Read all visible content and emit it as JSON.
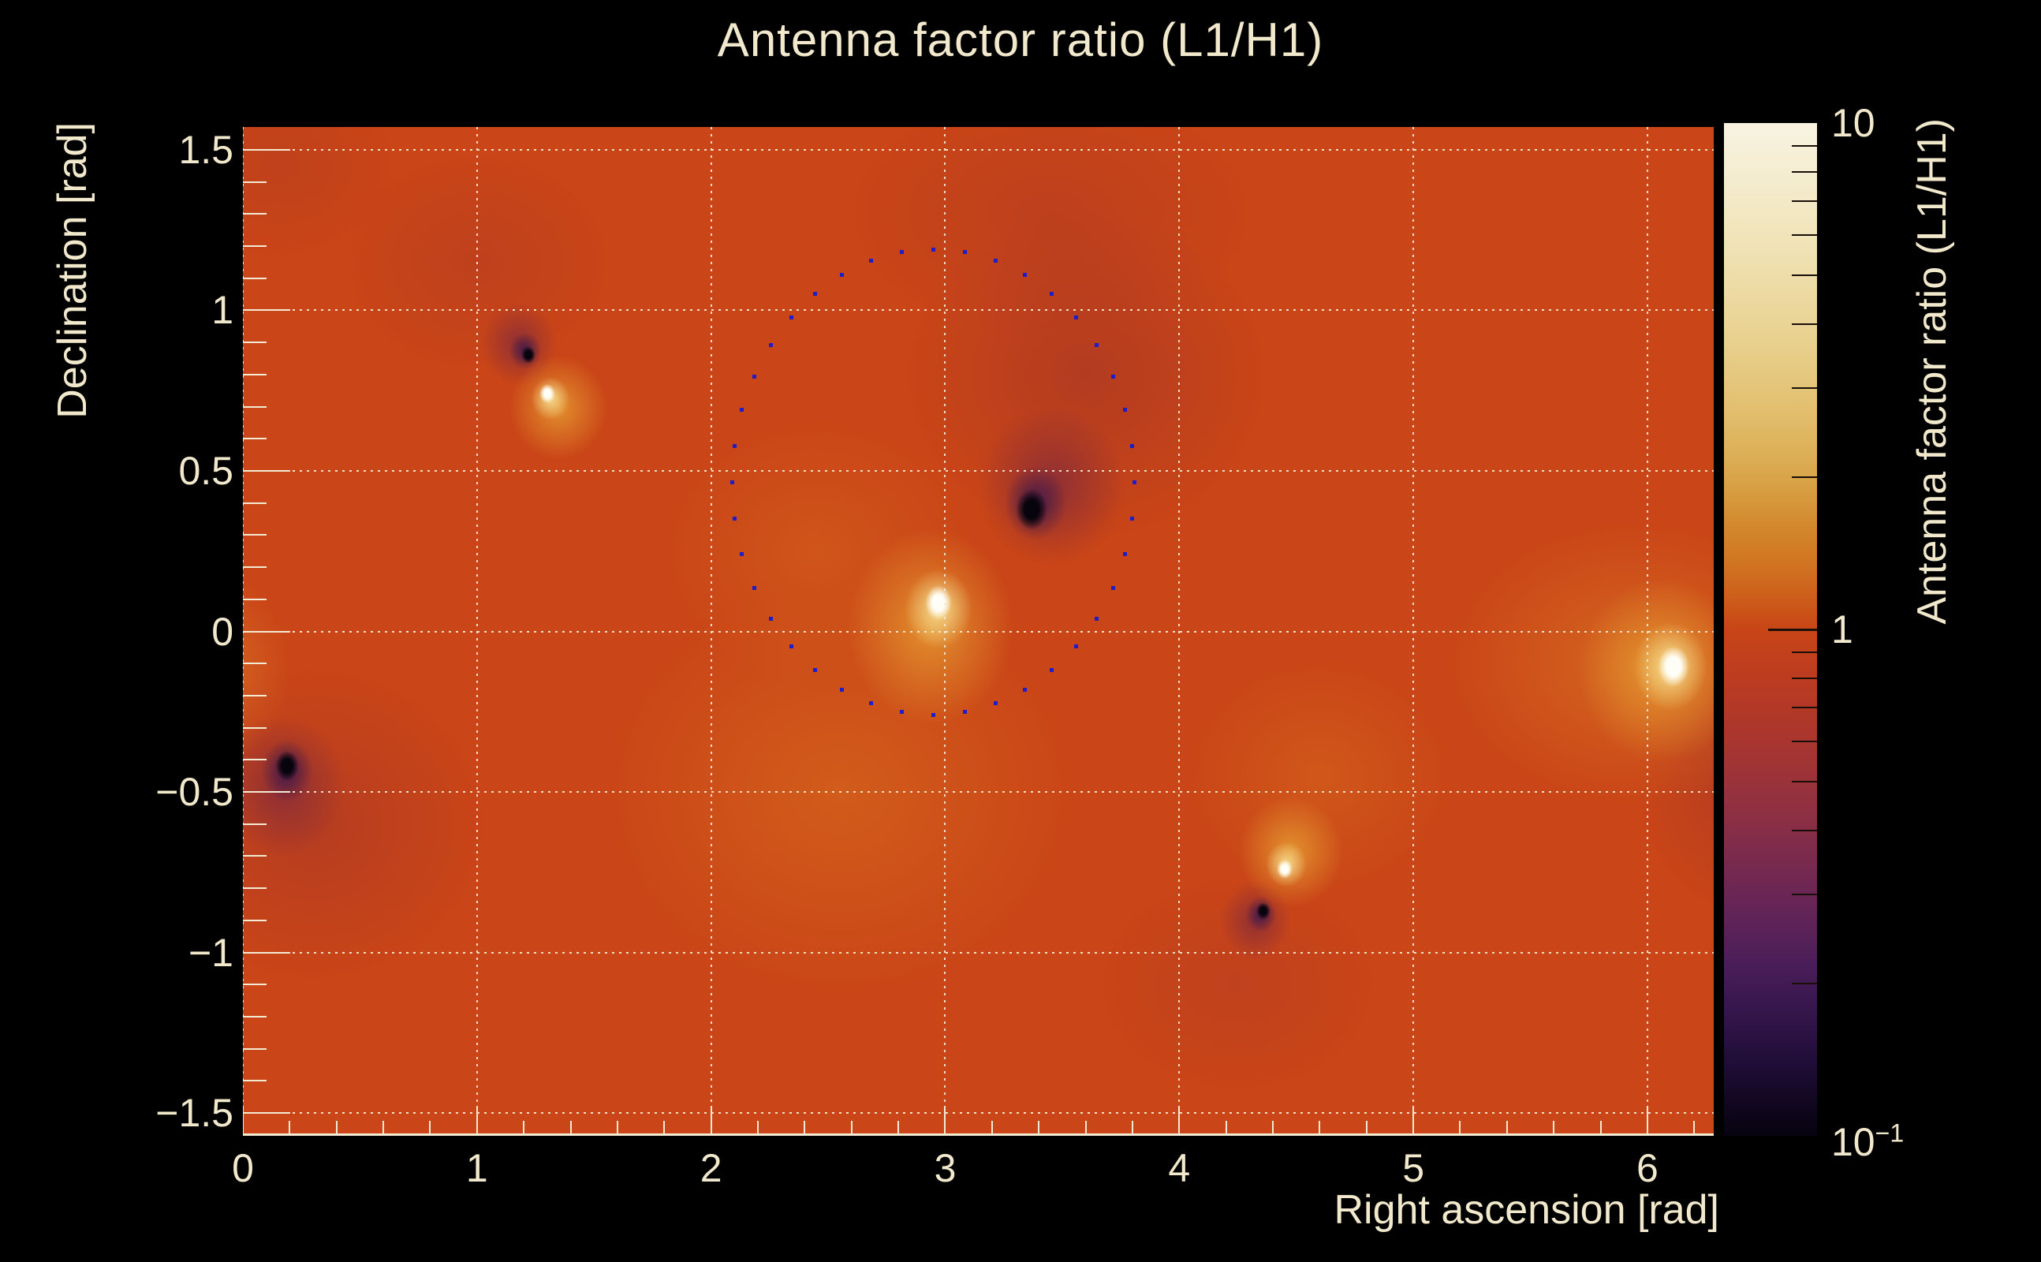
{
  "page": {
    "title": "Antenna factor ratio (L1/H1)",
    "background": "#000000",
    "text_color": "#F2E9CD"
  },
  "chart_data": {
    "type": "heatmap",
    "title": "Antenna factor ratio (L1/H1)",
    "xlabel": "Right ascension [rad]",
    "ylabel": "Declination [rad]",
    "zlabel": "Antenna factor ratio (L1/H1)",
    "xlim": [
      0,
      6.2832
    ],
    "ylim": [
      -1.5708,
      1.5708
    ],
    "zlim": [
      0.1,
      10
    ],
    "zscale": "log",
    "grid": true,
    "background_level": 1.0,
    "base_color": "#CA4517",
    "gridline_color": "#F3EBD6",
    "tick_color": "#F2EAD2",
    "x_ticks": {
      "major": [
        0,
        1,
        2,
        3,
        4,
        5,
        6
      ],
      "labels": [
        "0",
        "1",
        "2",
        "3",
        "4",
        "5",
        "6"
      ],
      "minor_step": 0.2,
      "minor_max": 6.2
    },
    "y_ticks": {
      "major": [
        -1.5,
        -1,
        -0.5,
        0,
        0.5,
        1,
        1.5
      ],
      "labels": [
        "−1.5",
        "−1",
        "−0.5",
        "0",
        "0.5",
        "1",
        "1.5"
      ],
      "minor_step": 0.1
    },
    "z_ticks": {
      "major": [
        1
      ],
      "minor": [
        9,
        8,
        7,
        6,
        5,
        4,
        3,
        2,
        0.9,
        0.8,
        0.7,
        0.6,
        0.5,
        0.4,
        0.3,
        0.2
      ],
      "labels": [
        {
          "t": "10",
          "e": "",
          "v": 10
        },
        {
          "t": "1",
          "e": "",
          "v": 1
        },
        {
          "t": "10",
          "e": "−1",
          "v": 0.1
        }
      ]
    },
    "palette_top_to_bottom": [
      [
        "#F8F3E1",
        0
      ],
      [
        "#F5EDD1",
        5
      ],
      [
        "#F2E6BE",
        10
      ],
      [
        "#EDDCA6",
        16
      ],
      [
        "#E8CF8C",
        22
      ],
      [
        "#E2C070",
        28
      ],
      [
        "#DCAE55",
        33
      ],
      [
        "#D69A3C",
        37
      ],
      [
        "#D3872C",
        40
      ],
      [
        "#D17722",
        43
      ],
      [
        "#CE641C",
        46
      ],
      [
        "#CB5519",
        48
      ],
      [
        "#C84517",
        50
      ],
      [
        "#BE3D1F",
        54
      ],
      [
        "#B23827",
        58
      ],
      [
        "#A23434",
        63
      ],
      [
        "#8F3042",
        68
      ],
      [
        "#782A4E",
        73
      ],
      [
        "#622457",
        78
      ],
      [
        "#4B1E59",
        83
      ],
      [
        "#38174E",
        87
      ],
      [
        "#271040",
        91
      ],
      [
        "#170A2B",
        95
      ],
      [
        "#0D0519",
        98
      ],
      [
        "#070310",
        100
      ]
    ],
    "features": [
      {
        "name": "bright-max-central",
        "kind": "bright",
        "ra": 2.97,
        "dec": 0.09,
        "peak": 10,
        "core": [
          17,
          22
        ],
        "mid": [
          60,
          70,
          0,
          8
        ],
        "outer": [
          135,
          160,
          -10,
          30
        ]
      },
      {
        "name": "dark-min-central",
        "kind": "dark",
        "ra": 3.37,
        "dec": 0.38,
        "peak": 0.1,
        "core": [
          20,
          26
        ],
        "mid": [
          55,
          65,
          5,
          -8
        ],
        "outer": [
          120,
          130,
          25,
          -30
        ]
      },
      {
        "name": "bright-small-upper-left",
        "kind": "bright",
        "ra": 1.3,
        "dec": 0.74,
        "peak": 10,
        "core": [
          10,
          12
        ],
        "mid": [
          34,
          38,
          4,
          6
        ],
        "outer": [
          80,
          85,
          14,
          18
        ]
      },
      {
        "name": "dark-small-upper-left",
        "kind": "dark",
        "ra": 1.22,
        "dec": 0.86,
        "peak": 0.1,
        "core": [
          9,
          11
        ],
        "mid": [
          28,
          32,
          -4,
          -5
        ],
        "outer": [
          62,
          68,
          -12,
          -14
        ]
      },
      {
        "name": "dark-left-edge",
        "kind": "dark",
        "ra": 0.19,
        "dec": -0.42,
        "peak": 0.1,
        "core": [
          15,
          19
        ],
        "mid": [
          45,
          55,
          0,
          6
        ],
        "outer": [
          100,
          115,
          -5,
          25
        ]
      },
      {
        "name": "bright-small-lower-right",
        "kind": "bright",
        "ra": 4.45,
        "dec": -0.74,
        "peak": 10,
        "core": [
          10,
          12
        ],
        "mid": [
          36,
          40,
          2,
          -6
        ],
        "outer": [
          85,
          90,
          8,
          -22
        ]
      },
      {
        "name": "dark-small-lower-right",
        "kind": "dark",
        "ra": 4.36,
        "dec": -0.87,
        "peak": 0.1,
        "core": [
          9,
          11
        ],
        "mid": [
          27,
          31,
          -3,
          4
        ],
        "outer": [
          58,
          64,
          -10,
          12
        ]
      },
      {
        "name": "bright-right-edge",
        "kind": "bright",
        "ra": 6.11,
        "dec": -0.11,
        "peak": 10,
        "core": [
          20,
          26
        ],
        "mid": [
          65,
          78,
          -4,
          0
        ],
        "outer": [
          135,
          150,
          -15,
          5
        ]
      }
    ],
    "washes": [
      {
        "ra": 2.55,
        "dec": -0.5,
        "rx": 300,
        "ry": 260,
        "rgb": "222,130,34",
        "alpha": 0.38
      },
      {
        "ra": 2.45,
        "dec": 0.25,
        "rx": 200,
        "ry": 170,
        "rgb": "220,122,32",
        "alpha": 0.3
      },
      {
        "ra": 3.6,
        "dec": 0.8,
        "rx": 230,
        "ry": 210,
        "rgb": "150,48,44",
        "alpha": 0.45
      },
      {
        "ra": 3.45,
        "dec": 1.3,
        "rx": 260,
        "ry": 160,
        "rgb": "165,54,40",
        "alpha": 0.35
      },
      {
        "ra": 0.3,
        "dec": -0.6,
        "rx": 220,
        "ry": 200,
        "rgb": "150,48,48",
        "alpha": 0.4
      },
      {
        "ra": 1.0,
        "dec": 1.15,
        "rx": 170,
        "ry": 140,
        "rgb": "168,56,40",
        "alpha": 0.35
      },
      {
        "ra": 4.25,
        "dec": -1.1,
        "rx": 180,
        "ry": 140,
        "rgb": "168,56,44",
        "alpha": 0.3
      },
      {
        "ra": 4.6,
        "dec": -0.45,
        "rx": 170,
        "ry": 150,
        "rgb": "222,130,34",
        "alpha": 0.3
      },
      {
        "ra": 5.95,
        "dec": -0.1,
        "rx": 240,
        "ry": 180,
        "rgb": "226,150,45",
        "alpha": 0.4
      },
      {
        "ra": -0.17,
        "dec": -0.12,
        "rx": 110,
        "ry": 130,
        "rgb": "228,155,52",
        "alpha": 0.45
      },
      {
        "ra": 6.45,
        "dec": -0.45,
        "rx": 150,
        "ry": 180,
        "rgb": "140,44,52",
        "alpha": 0.4
      },
      {
        "ra": 0.15,
        "dec": 1.45,
        "rx": 150,
        "ry": 120,
        "rgb": "160,52,40",
        "alpha": 0.25
      }
    ],
    "contour": {
      "shape": "ellipse-dotted",
      "center_ra": 2.95,
      "center_dec": 0.465,
      "rx_rad": 0.86,
      "ry_rad": 0.725,
      "n_dots": 40,
      "dot_color": "#1E1EC8",
      "dot_size": 5
    }
  }
}
